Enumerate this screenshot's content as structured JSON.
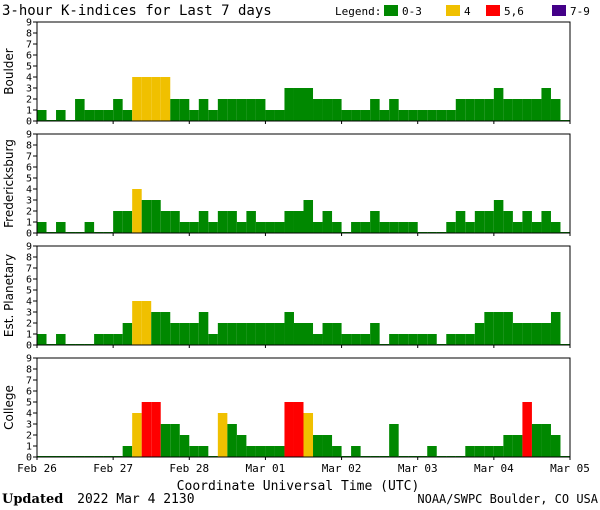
{
  "chart_data": {
    "type": "bar",
    "title": "3-hour K-indices for Last 7 days",
    "legend_title": "Legend:",
    "legend": [
      {
        "label": "0-3",
        "color": "#008800"
      },
      {
        "label": "4",
        "color": "#f0c000"
      },
      {
        "label": "5,6",
        "color": "#ff0000"
      },
      {
        "label": "7-9",
        "color": "#440088"
      }
    ],
    "color_rules": [
      {
        "max": 3,
        "color": "#008800"
      },
      {
        "max": 4,
        "color": "#f0c000"
      },
      {
        "max": 6,
        "color": "#ff0000"
      },
      {
        "max": 9,
        "color": "#440088"
      }
    ],
    "ylim": [
      0,
      9
    ],
    "yticks": [
      "0",
      "1",
      "2",
      "3",
      "4",
      "5",
      "6",
      "7",
      "8",
      "9"
    ],
    "xlabel": "Coordinate Universal Time (UTC)",
    "xticks": [
      "Feb 26",
      "Feb 27",
      "Feb 28",
      "Mar 01",
      "Mar 02",
      "Mar 03",
      "Mar 04",
      "Mar 05"
    ],
    "intervals": 56,
    "panels": [
      {
        "name": "Boulder",
        "values": [
          1,
          0,
          1,
          0,
          2,
          1,
          1,
          1,
          2,
          1,
          4,
          4,
          4,
          4,
          2,
          2,
          1,
          2,
          1,
          2,
          2,
          2,
          2,
          2,
          1,
          1,
          3,
          3,
          3,
          2,
          2,
          2,
          1,
          1,
          1,
          2,
          1,
          2,
          1,
          1,
          1,
          1,
          1,
          1,
          2,
          2,
          2,
          2,
          3,
          2,
          2,
          2,
          2,
          3,
          2,
          0
        ]
      },
      {
        "name": "Fredericksburg",
        "values": [
          1,
          0,
          1,
          0,
          0,
          1,
          0,
          0,
          2,
          2,
          4,
          3,
          3,
          2,
          2,
          1,
          1,
          2,
          1,
          2,
          2,
          1,
          2,
          1,
          1,
          1,
          2,
          2,
          3,
          1,
          2,
          1,
          0,
          1,
          1,
          2,
          1,
          1,
          1,
          1,
          0,
          0,
          0,
          1,
          2,
          1,
          2,
          2,
          3,
          2,
          1,
          2,
          1,
          2,
          1,
          0
        ]
      },
      {
        "name": "Est. Planetary",
        "values": [
          1,
          0,
          1,
          0,
          0,
          0,
          1,
          1,
          1,
          2,
          4,
          4,
          3,
          3,
          2,
          2,
          2,
          3,
          1,
          2,
          2,
          2,
          2,
          2,
          2,
          2,
          3,
          2,
          2,
          1,
          2,
          2,
          1,
          1,
          1,
          2,
          0,
          1,
          1,
          1,
          1,
          1,
          0,
          1,
          1,
          1,
          2,
          3,
          3,
          3,
          2,
          2,
          2,
          2,
          3,
          0
        ]
      },
      {
        "name": "College",
        "values": [
          0,
          0,
          0,
          0,
          0,
          0,
          0,
          0,
          0,
          1,
          4,
          5,
          5,
          3,
          3,
          2,
          1,
          1,
          0,
          4,
          3,
          2,
          1,
          1,
          1,
          1,
          5,
          5,
          4,
          2,
          2,
          1,
          0,
          1,
          0,
          0,
          0,
          3,
          0,
          0,
          0,
          1,
          0,
          0,
          0,
          1,
          1,
          1,
          1,
          2,
          2,
          5,
          3,
          3,
          2,
          0
        ]
      }
    ]
  },
  "footer": {
    "updated_label": "Updated",
    "updated_time": "2022 Mar  4 2130",
    "source": "NOAA/SWPC Boulder, CO USA"
  }
}
